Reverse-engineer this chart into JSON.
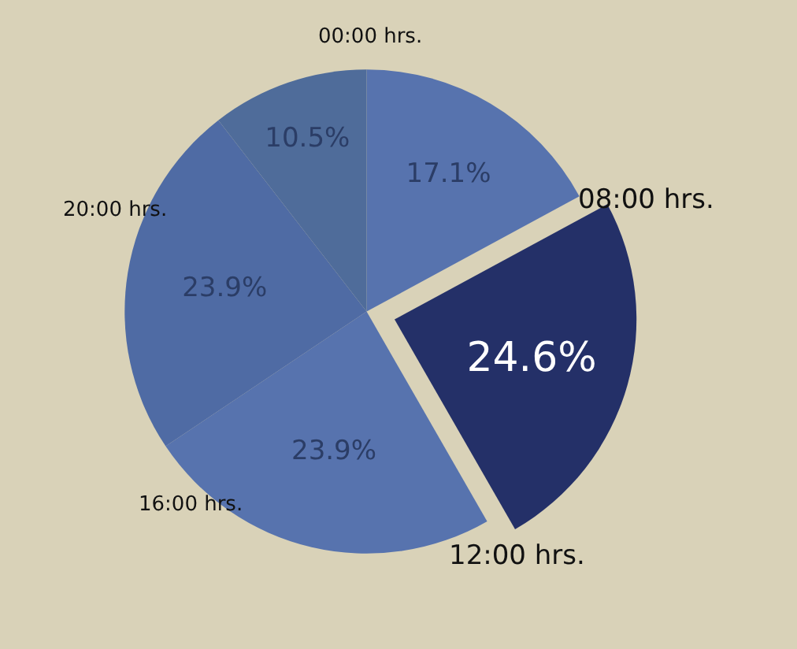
{
  "chart_data": {
    "type": "pie",
    "categories": [
      null,
      null,
      null,
      null,
      null
    ],
    "values": [
      17.1,
      24.6,
      23.9,
      23.9,
      10.5
    ],
    "value_labels": [
      "17.1%",
      "24.6%",
      "23.9%",
      "23.9%",
      "10.5%"
    ],
    "colors": [
      "#5773ae",
      "#243068",
      "#5773ae",
      "#4f6ba4",
      "#4f6c9a"
    ],
    "annotations": [
      "00:00 hrs.",
      "08:00 hrs.",
      "12:00 hrs.",
      "16:00 hrs.",
      "20:00 hrs."
    ],
    "legend": false
  }
}
